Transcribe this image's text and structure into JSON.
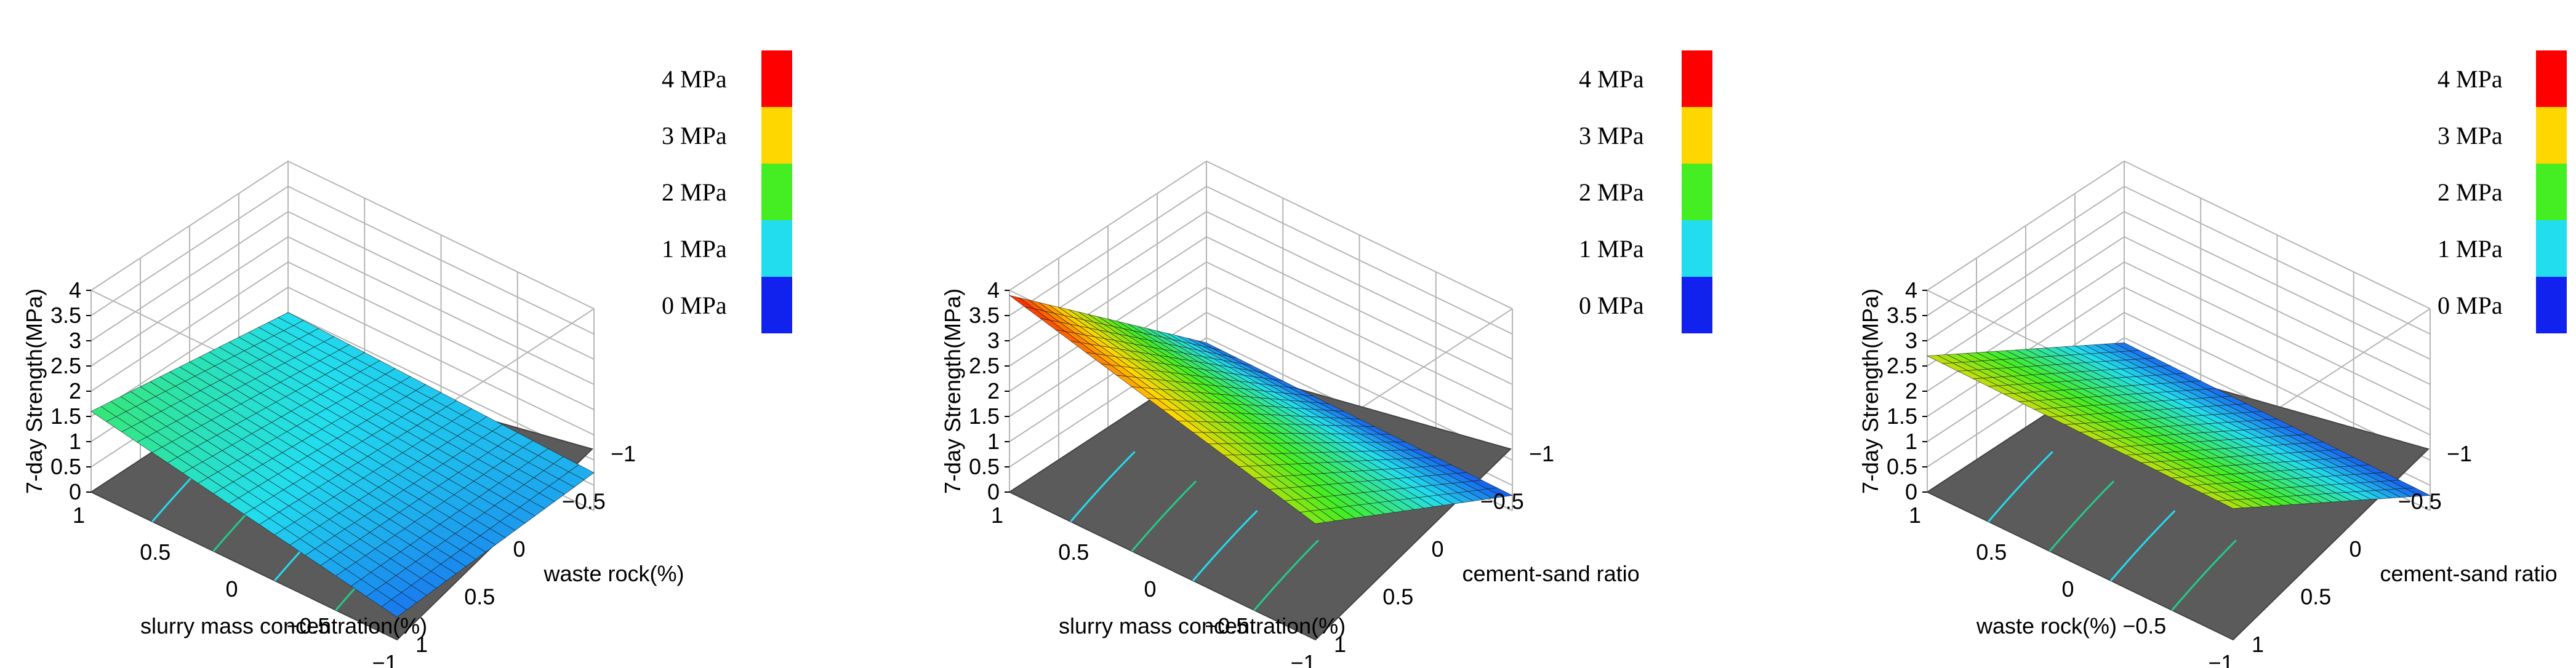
{
  "figure": {
    "ztitle": "7-day Strength(MPa)",
    "ztick_labels": [
      "0",
      "0.5",
      "1",
      "1.5",
      "2",
      "2.5",
      "3",
      "3.5",
      "4"
    ]
  },
  "chart_data": [
    {
      "type": "surface",
      "xlabel": "slurry mass concentration(%)",
      "ylabel": "waste rock(%)",
      "zlabel": "7-day Strength(MPa)",
      "xlim": [
        -1,
        1
      ],
      "ylim": [
        -1,
        1
      ],
      "zlim": [
        0,
        4
      ],
      "xticks": [
        "1",
        "0.5",
        "0",
        "−0.5",
        "−1"
      ],
      "yticks": [
        "−1",
        "−0.5",
        "0",
        "0.5",
        "1"
      ],
      "zticks": [
        "0",
        "0.5",
        "1",
        "1.5",
        "2",
        "2.5",
        "3",
        "3.5",
        "4"
      ],
      "corner_values": {
        "x1_ym1": 1.0,
        "x1_y1": 1.6,
        "xm1_ym1": 0.75,
        "xm1_y1": 0.45
      },
      "contours_on_floor": true,
      "legend": {
        "position": "right",
        "entries": [
          {
            "label": "4 MPa",
            "color": "#ff0000"
          },
          {
            "label": "3 MPa",
            "color": "#ffd700"
          },
          {
            "label": "2 MPa",
            "color": "#44ee22"
          },
          {
            "label": "1 MPa",
            "color": "#22ddee"
          },
          {
            "label": "0 MPa",
            "color": "#1122ee"
          }
        ]
      }
    },
    {
      "type": "surface",
      "xlabel": "slurry mass concentration(%)",
      "ylabel": "cement-sand ratio",
      "zlabel": "7-day Strength(MPa)",
      "xlim": [
        -1,
        1
      ],
      "ylim": [
        -1,
        1
      ],
      "zlim": [
        0,
        4
      ],
      "xticks": [
        "1",
        "0.5",
        "0",
        "−0.5",
        "−1"
      ],
      "yticks": [
        "−1",
        "−0.5",
        "0",
        "0.5",
        "1"
      ],
      "zticks": [
        "0",
        "0.5",
        "1",
        "1.5",
        "2",
        "2.5",
        "3",
        "3.5",
        "4"
      ],
      "corner_values": {
        "x1_ym1": 0.4,
        "x1_y1": 3.9,
        "xm1_ym1": 0.3,
        "xm1_y1": 2.3
      },
      "contours_on_floor": true,
      "legend": {
        "position": "right",
        "entries": [
          {
            "label": "4 MPa",
            "color": "#ff0000"
          },
          {
            "label": "3 MPa",
            "color": "#ffd700"
          },
          {
            "label": "2 MPa",
            "color": "#44ee22"
          },
          {
            "label": "1 MPa",
            "color": "#22ddee"
          },
          {
            "label": "0 MPa",
            "color": "#1122ee"
          }
        ]
      }
    },
    {
      "type": "surface",
      "xlabel": "waste rock(%)",
      "ylabel": "cement-sand ratio",
      "zlabel": "7-day Strength(MPa)",
      "xlim": [
        -1,
        1
      ],
      "ylim": [
        -1,
        1
      ],
      "zlim": [
        0,
        4
      ],
      "xticks": [
        "1",
        "0.5",
        "0",
        "−0.5",
        "−1"
      ],
      "yticks": [
        "−1",
        "−0.5",
        "0",
        "0.5",
        "1"
      ],
      "zticks": [
        "0",
        "0.5",
        "1",
        "1.5",
        "2",
        "2.5",
        "3",
        "3.5",
        "4"
      ],
      "corner_values": {
        "x1_ym1": 0.4,
        "x1_y1": 2.7,
        "xm1_ym1": 0.3,
        "xm1_y1": 2.6
      },
      "contours_on_floor": true,
      "legend": {
        "position": "right",
        "entries": [
          {
            "label": "4 MPa",
            "color": "#ff0000"
          },
          {
            "label": "3 MPa",
            "color": "#ffd700"
          },
          {
            "label": "2 MPa",
            "color": "#44ee22"
          },
          {
            "label": "1 MPa",
            "color": "#22ddee"
          },
          {
            "label": "0 MPa",
            "color": "#1122ee"
          }
        ]
      }
    }
  ]
}
